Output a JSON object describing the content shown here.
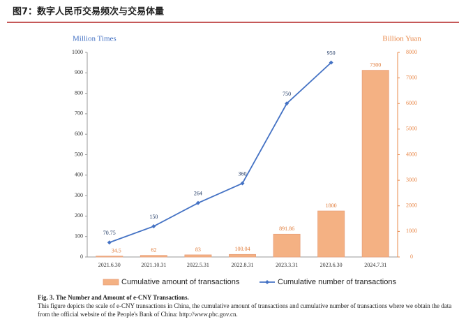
{
  "chart_data": {
    "type": "bar",
    "title": "图7：数字人民币交易频次与交易体量",
    "y_label": "Million Times",
    "y2_label": "Billion Yuan",
    "categories": [
      "2021.6.30",
      "2021.10.31",
      "2022.5.31",
      "2022.8.31",
      "2023.3.31",
      "2023.6.30",
      "2024.7.31"
    ],
    "series": [
      {
        "name": "Cumulative amount of transactions",
        "type": "bar",
        "axis": "y2",
        "color": "#f4b183",
        "values": [
          34.5,
          62,
          83,
          100.04,
          891.86,
          1800,
          7300
        ]
      },
      {
        "name": "Cumulative number of transactions",
        "type": "line",
        "color": "#4472c4",
        "values": [
          70.75,
          150,
          264,
          360,
          750,
          950,
          null
        ]
      }
    ],
    "ylim": [
      0,
      1000
    ],
    "yticks": [
      0,
      100,
      200,
      300,
      400,
      500,
      600,
      700,
      800,
      900,
      1000
    ],
    "y2lim": [
      0,
      8000
    ],
    "y2ticks": [
      0,
      1000,
      2000,
      3000,
      4000,
      5000,
      6000,
      7000,
      8000
    ]
  },
  "caption": {
    "heading": "Fig. 3. The Number and Amount of e-CNY Transactions.",
    "text": "This figure depicts the scale of e-CNY transactions in China, the cumulative amount of transactions and cumulative number of transactions where we obtain the data from the official website of the People's Bank of China: http://www.pbc.gov.cn."
  }
}
